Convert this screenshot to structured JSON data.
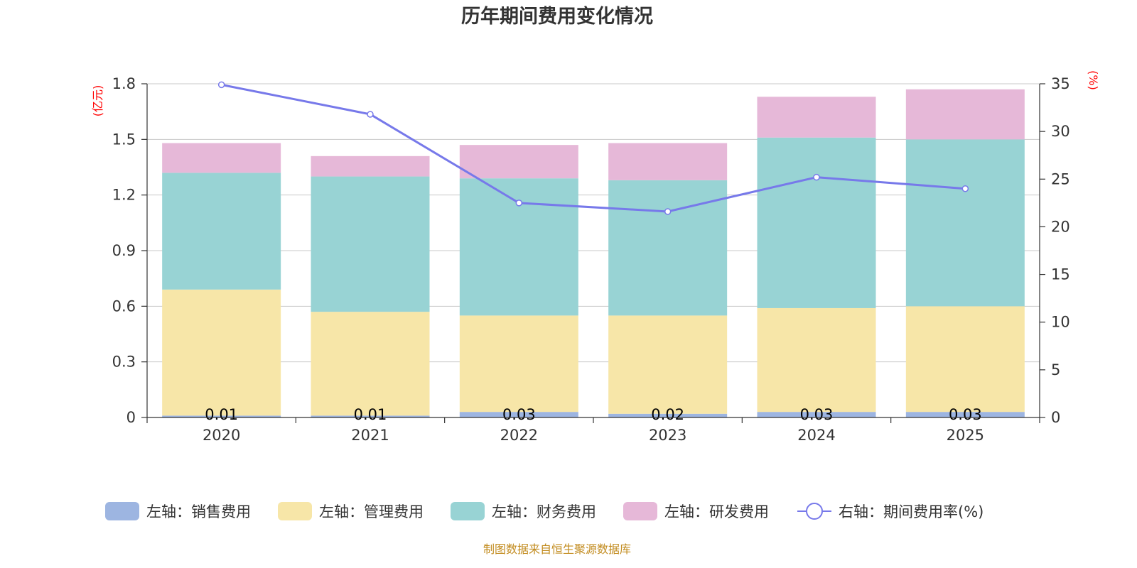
{
  "chart_data": {
    "type": "bar",
    "title": "历年期间费用变化情况",
    "categories": [
      "2020",
      "2021",
      "2022",
      "2023",
      "2024",
      "2025"
    ],
    "left_axis": {
      "unit_label": "(亿元)",
      "ylim": [
        0,
        1.8
      ],
      "ticks": [
        "0",
        "0.3",
        "0.6",
        "0.9",
        "1.2",
        "1.5",
        "1.8"
      ]
    },
    "right_axis": {
      "unit_label": "(%)",
      "ylim": [
        0,
        35
      ],
      "ticks": [
        "0",
        "5",
        "10",
        "15",
        "20",
        "25",
        "30",
        "35"
      ]
    },
    "series": [
      {
        "name": "左轴：销售费用",
        "type": "bar",
        "color": "#9db5e1",
        "values": [
          0.01,
          0.01,
          0.03,
          0.02,
          0.03,
          0.03
        ]
      },
      {
        "name": "左轴：管理费用",
        "type": "bar",
        "color": "#f7e6a8",
        "values": [
          0.68,
          0.56,
          0.52,
          0.53,
          0.56,
          0.57
        ]
      },
      {
        "name": "左轴：财务费用",
        "type": "bar",
        "color": "#98d3d4",
        "values": [
          0.63,
          0.73,
          0.74,
          0.73,
          0.92,
          0.9
        ]
      },
      {
        "name": "左轴：研发费用",
        "type": "bar",
        "color": "#e6b8d8",
        "values": [
          0.16,
          0.11,
          0.18,
          0.2,
          0.22,
          0.27
        ]
      },
      {
        "name": "右轴：期间费用率(%)",
        "type": "line",
        "axis": "right",
        "color": "#7779ea",
        "values": [
          34.9,
          31.8,
          22.5,
          21.6,
          25.2,
          24.0
        ]
      }
    ],
    "data_labels": [
      "0.01",
      "0.01",
      "0.03",
      "0.02",
      "0.03",
      "0.03"
    ],
    "legend_position": "bottom",
    "grid": true
  },
  "source": "制图数据来自恒生聚源数据库"
}
